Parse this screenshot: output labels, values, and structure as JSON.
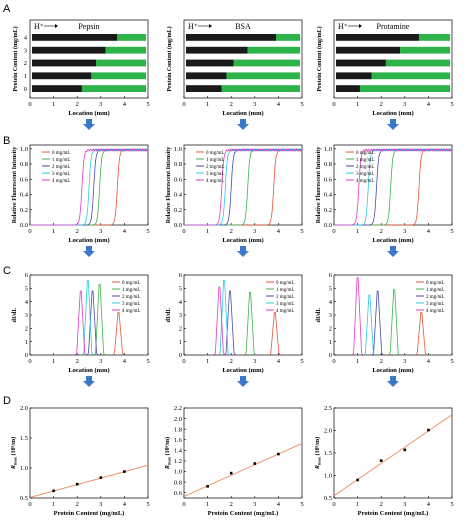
{
  "colors": {
    "series": [
      "#e8553a",
      "#3cb44b",
      "#4a4aa8",
      "#33c8e6",
      "#e03cc8"
    ],
    "lane_dark": "#1a1a1a",
    "lane_green": "#2cb34a",
    "fit_line": "#f08a5d",
    "arrow": "#3c78c8"
  },
  "panel_labels": [
    "A",
    "B",
    "C",
    "D"
  ],
  "columns": [
    {
      "title": "Pepsin",
      "h_label": "H⁺"
    },
    {
      "title": "BSA",
      "h_label": "H⁺"
    },
    {
      "title": "Protamine",
      "h_label": "H⁺"
    }
  ],
  "legend_labels": [
    "0 mg/mL",
    "1 mg/mL",
    "2 mg/mL",
    "3 mg/mL",
    "4 mg/mL"
  ],
  "axis_text": {
    "location": "Location (mm)",
    "protein_content_y": "Protein Content (mg/mL)",
    "rfi": "Relative Fluorescent Intensity",
    "didl": "dI/dL",
    "rmax_prefix": "R",
    "rmax_sub": "max",
    "rmax_unit": " (10⁶/m)",
    "protein_content_x": "Protein Content (mg/mL)"
  },
  "chart_data": [
    {
      "type": "heatmap",
      "panel": "A",
      "xlabel": "Location (mm)",
      "ylabel": "Protein Content (mg/mL)",
      "xlim": [
        0,
        5
      ],
      "x_ticks": [
        0,
        1,
        2,
        3,
        4,
        5
      ],
      "y_ticks": [
        4,
        3,
        2,
        1,
        0
      ],
      "columns": [
        {
          "title": "Pepsin",
          "green_start_mm": [
            2.2,
            2.6,
            2.8,
            3.2,
            3.7
          ]
        },
        {
          "title": "BSA",
          "green_start_mm": [
            1.6,
            1.8,
            2.1,
            2.7,
            3.9
          ]
        },
        {
          "title": "Protamine",
          "green_start_mm": [
            1.1,
            1.6,
            2.2,
            2.8,
            3.6
          ]
        }
      ]
    },
    {
      "type": "line",
      "panel": "B",
      "xlabel": "Location (mm)",
      "ylabel": "Relative Fluorescent Intensity",
      "xlim": [
        0,
        5
      ],
      "ylim": [
        0,
        1.05
      ],
      "x_ticks": [
        0,
        1,
        2,
        3,
        4,
        5
      ],
      "y_ticks": [
        0.0,
        0.2,
        0.4,
        0.6,
        0.8,
        1.0
      ],
      "series_names": [
        "0 mg/mL",
        "1 mg/mL",
        "2 mg/mL",
        "3 mg/mL",
        "4 mg/mL"
      ],
      "columns": [
        {
          "title": "Pepsin",
          "step_mm": [
            3.7,
            2.95,
            2.7,
            2.5,
            2.2
          ]
        },
        {
          "title": "BSA",
          "step_mm": [
            3.8,
            2.7,
            2.0,
            1.75,
            1.6
          ]
        },
        {
          "title": "Protamine",
          "step_mm": [
            3.6,
            2.4,
            1.8,
            1.45,
            1.05
          ]
        }
      ]
    },
    {
      "type": "line",
      "panel": "C",
      "xlabel": "Location (mm)",
      "ylabel": "dI/dL",
      "xlim": [
        0,
        5
      ],
      "ylim": [
        0,
        6
      ],
      "x_ticks": [
        0,
        1,
        2,
        3,
        4,
        5
      ],
      "y_ticks": [
        0,
        1,
        2,
        3,
        4,
        5,
        6
      ],
      "series_names": [
        "0 mg/mL",
        "1 mg/mL",
        "2 mg/mL",
        "3 mg/mL",
        "4 mg/mL"
      ],
      "columns": [
        {
          "title": "Pepsin",
          "peak_mm": [
            3.75,
            2.95,
            2.65,
            2.45,
            2.15
          ],
          "peak_height": [
            3.2,
            5.3,
            4.8,
            5.6,
            4.8
          ]
        },
        {
          "title": "BSA",
          "peak_mm": [
            3.85,
            2.8,
            1.95,
            1.7,
            1.5
          ],
          "peak_height": [
            3.2,
            4.7,
            4.8,
            5.6,
            5.1
          ]
        },
        {
          "title": "Protamine",
          "peak_mm": [
            3.7,
            2.55,
            1.85,
            1.5,
            1.0
          ],
          "peak_height": [
            3.2,
            4.9,
            4.8,
            4.5,
            5.8
          ]
        }
      ]
    },
    {
      "type": "scatter",
      "panel": "D",
      "xlabel": "Protein Content (mg/mL)",
      "ylabel": "R max (10⁶/m)",
      "xlim": [
        0,
        5
      ],
      "x_ticks": [
        0,
        1,
        2,
        3,
        4,
        5
      ],
      "columns": [
        {
          "title": "Pepsin",
          "ylim": [
            0.5,
            2.0
          ],
          "y_ticks": [
            0.5,
            1.0,
            1.5,
            2.0
          ],
          "x": [
            1,
            2,
            3,
            4
          ],
          "y": [
            0.62,
            0.73,
            0.84,
            0.94
          ],
          "fit": [
            0.51,
            0.107
          ]
        },
        {
          "title": "BSA",
          "ylim": [
            0.5,
            2.2
          ],
          "y_ticks": [
            0.6,
            0.8,
            1.0,
            1.2,
            1.4,
            1.6,
            1.8,
            2.0,
            2.2
          ],
          "x": [
            1,
            2,
            3,
            4
          ],
          "y": [
            0.72,
            0.97,
            1.15,
            1.33
          ],
          "fit": [
            0.53,
            0.2
          ]
        },
        {
          "title": "Protamine",
          "ylim": [
            0.5,
            2.5
          ],
          "y_ticks": [
            0.5,
            1.0,
            1.5,
            2.0,
            2.5
          ],
          "x": [
            1,
            2,
            3,
            4
          ],
          "y": [
            0.9,
            1.33,
            1.57,
            2.01
          ],
          "fit": [
            0.55,
            0.36
          ]
        }
      ]
    }
  ]
}
